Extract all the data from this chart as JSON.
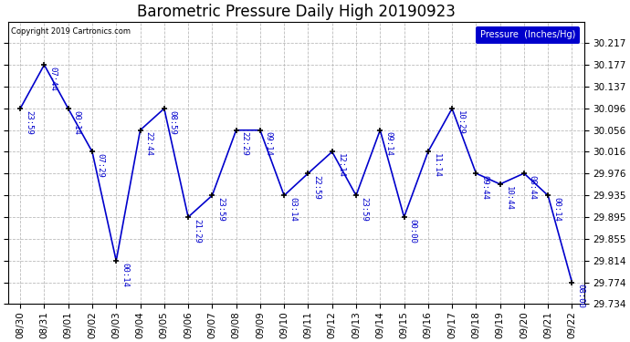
{
  "title": "Barometric Pressure Daily High 20190923",
  "copyright": "Copyright 2019 Cartronics.com",
  "legend_label": "Pressure  (Inches/Hg)",
  "ylim": [
    29.734,
    30.257
  ],
  "yticks": [
    29.734,
    29.774,
    29.814,
    29.855,
    29.895,
    29.935,
    29.976,
    30.016,
    30.056,
    30.096,
    30.137,
    30.177,
    30.217
  ],
  "background_color": "#ffffff",
  "line_color": "#0000cc",
  "marker_color": "#000000",
  "grid_color": "#bbbbbb",
  "dates": [
    "08/30",
    "08/31",
    "09/01",
    "09/02",
    "09/03",
    "09/04",
    "09/05",
    "09/06",
    "09/07",
    "09/08",
    "09/09",
    "09/10",
    "09/11",
    "09/12",
    "09/13",
    "09/14",
    "09/15",
    "09/16",
    "09/17",
    "09/18",
    "09/19",
    "09/20",
    "09/21",
    "09/22"
  ],
  "values": [
    30.096,
    30.177,
    30.096,
    30.016,
    29.814,
    30.056,
    30.096,
    29.895,
    29.935,
    30.056,
    30.056,
    29.935,
    29.976,
    30.016,
    29.935,
    30.056,
    29.895,
    30.016,
    30.096,
    29.976,
    29.956,
    29.976,
    29.935,
    29.774
  ],
  "time_labels": [
    "23:59",
    "07:44",
    "00:14",
    "07:29",
    "00:14",
    "22:44",
    "08:59",
    "21:29",
    "23:59",
    "22:29",
    "09:14",
    "03:14",
    "22:59",
    "12:14",
    "23:59",
    "09:14",
    "00:00",
    "11:14",
    "10:29",
    "09:44",
    "10:44",
    "08:44",
    "00:14",
    "08:00"
  ],
  "title_fontsize": 12,
  "tick_fontsize": 7.5,
  "annotation_fontsize": 6.5
}
